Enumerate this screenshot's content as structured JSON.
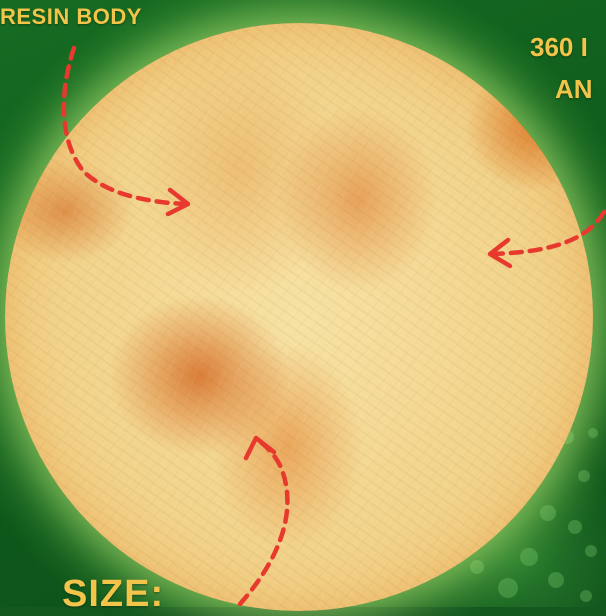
{
  "labels": {
    "resin_body": "RESIN BODY",
    "angle_line1": "360 I",
    "angle_line2": "AN",
    "size": "SIZE:"
  },
  "colors": {
    "label": "#f2c44a",
    "arrow": "#e8392f",
    "background": "#14571f"
  },
  "icons": [
    "dashed-arrow-icon"
  ]
}
